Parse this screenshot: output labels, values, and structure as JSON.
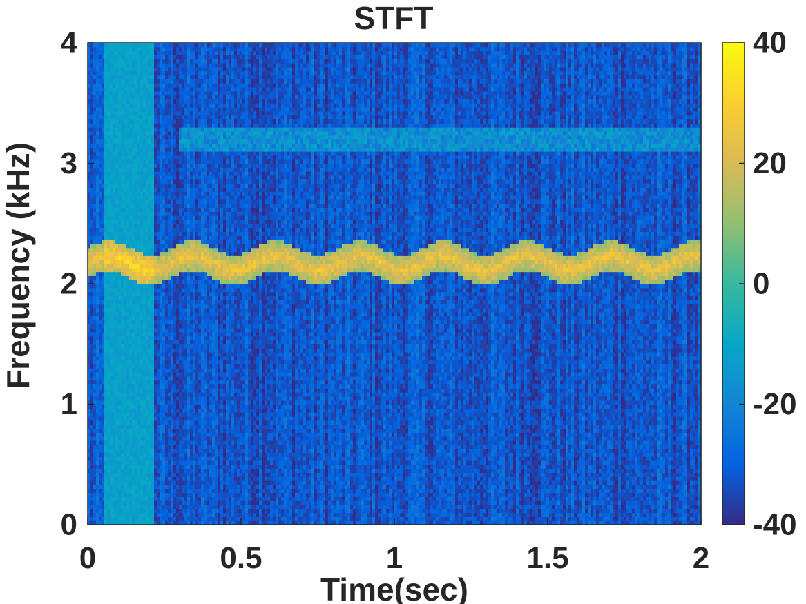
{
  "chart_data": {
    "type": "heatmap",
    "title": "STFT",
    "xlabel": "Time(sec)",
    "ylabel": "Frequency (kHz)",
    "xlim": [
      0,
      2
    ],
    "ylim": [
      0,
      4
    ],
    "xticks": [
      "0",
      "0.5",
      "1",
      "1.5",
      "2"
    ],
    "yticks": [
      "0",
      "1",
      "2",
      "3",
      "4"
    ],
    "colorbar": {
      "range": [
        -40,
        40
      ],
      "ticks": [
        "-40",
        "-20",
        "0",
        "20",
        "40"
      ],
      "colormap": "parula"
    },
    "features": {
      "tone_band_khz": [
        2.05,
        2.3
      ],
      "tone_level_db": 30,
      "weak_band_khz": [
        3.1,
        3.3
      ],
      "weak_band_level_db": -10,
      "broadband_burst_sec": [
        0.05,
        0.22
      ],
      "broadband_level_db": -12,
      "background_level_db": -32
    }
  },
  "colors": {
    "parula": [
      "#352a87",
      "#0363e1",
      "#1485d4",
      "#06a7c6",
      "#38b99e",
      "#92bf73",
      "#d9ba56",
      "#fcce2e",
      "#f9fb0e"
    ]
  }
}
